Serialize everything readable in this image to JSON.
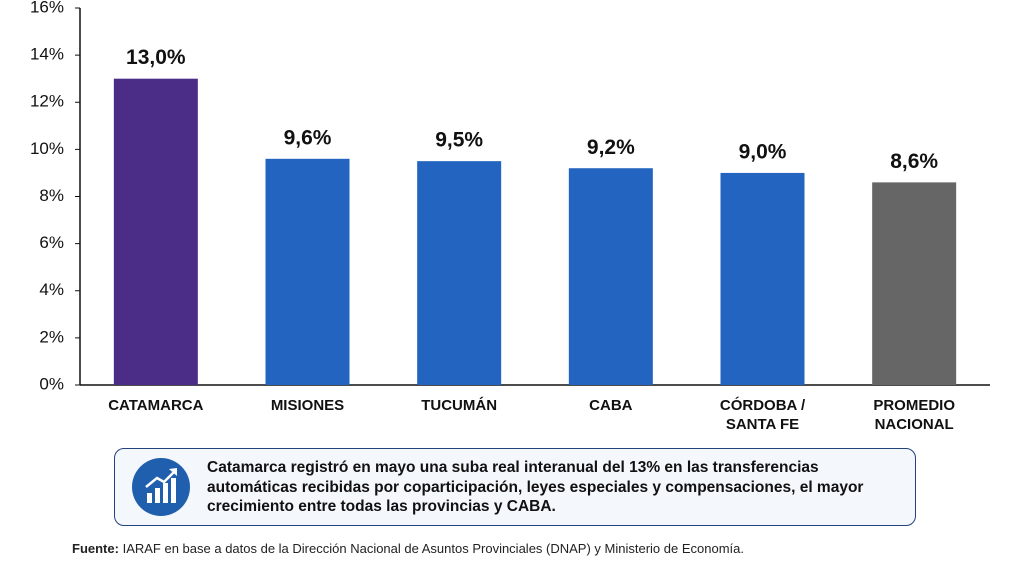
{
  "chart_data": {
    "type": "bar",
    "categories": [
      "CATAMARCA",
      "MISIONES",
      "TUCUMÁN",
      "CABA",
      "CÓRDOBA /\nSANTA FE",
      "PROMEDIO\nNACIONAL"
    ],
    "values": [
      13.0,
      9.6,
      9.5,
      9.2,
      9.0,
      8.6
    ],
    "value_labels": [
      "13,0%",
      "9,6%",
      "9,5%",
      "9,2%",
      "9,0%",
      "8,6%"
    ],
    "colors": [
      "#4b2d87",
      "#2264bf",
      "#2264bf",
      "#2264bf",
      "#2264bf",
      "#666666"
    ],
    "ylim": [
      0,
      16
    ],
    "yticks": [
      {
        "value": 0,
        "label": "0%"
      },
      {
        "value": 2,
        "label": "2%"
      },
      {
        "value": 4,
        "label": "4%"
      },
      {
        "value": 6,
        "label": "6%"
      },
      {
        "value": 8,
        "label": "8%"
      },
      {
        "value": 10,
        "label": "10%"
      },
      {
        "value": 12,
        "label": "12%"
      },
      {
        "value": 14,
        "label": "14%"
      },
      {
        "value": 16,
        "label": "16%"
      }
    ],
    "grid": false,
    "note": "Catamarca registró en mayo una suba real interanual del 13% en las transferencias automáticas recibidas por coparticipación, leyes especiales y compensaciones, el mayor crecimiento entre todas las provincias y CABA.",
    "source_label": "Fuente:",
    "source_text": "IARAF en base a datos de la Dirección Nacional de Asuntos Provinciales (DNAP) y Ministerio de Economía."
  }
}
